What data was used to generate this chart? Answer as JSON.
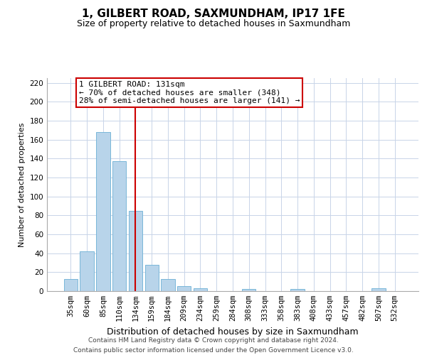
{
  "title": "1, GILBERT ROAD, SAXMUNDHAM, IP17 1FE",
  "subtitle": "Size of property relative to detached houses in Saxmundham",
  "xlabel": "Distribution of detached houses by size in Saxmundham",
  "ylabel": "Number of detached properties",
  "bar_labels": [
    "35sqm",
    "60sqm",
    "85sqm",
    "110sqm",
    "134sqm",
    "159sqm",
    "184sqm",
    "209sqm",
    "234sqm",
    "259sqm",
    "284sqm",
    "308sqm",
    "333sqm",
    "358sqm",
    "383sqm",
    "408sqm",
    "433sqm",
    "457sqm",
    "482sqm",
    "507sqm",
    "532sqm"
  ],
  "bar_values": [
    13,
    42,
    168,
    137,
    85,
    28,
    13,
    5,
    3,
    0,
    0,
    2,
    0,
    0,
    2,
    0,
    0,
    0,
    0,
    3,
    0
  ],
  "bar_color": "#b8d4ea",
  "bar_edge_color": "#6aafd4",
  "vline_x_index": 4,
  "vline_color": "#cc0000",
  "annotation_text": "1 GILBERT ROAD: 131sqm\n← 70% of detached houses are smaller (348)\n28% of semi-detached houses are larger (141) →",
  "ylim": [
    0,
    225
  ],
  "yticks": [
    0,
    20,
    40,
    60,
    80,
    100,
    120,
    140,
    160,
    180,
    200,
    220
  ],
  "footer_line1": "Contains HM Land Registry data © Crown copyright and database right 2024.",
  "footer_line2": "Contains public sector information licensed under the Open Government Licence v3.0.",
  "bg_color": "#ffffff",
  "grid_color": "#c8d4e8",
  "title_fontsize": 11,
  "subtitle_fontsize": 9,
  "ylabel_fontsize": 8,
  "xlabel_fontsize": 9,
  "annotation_fontsize": 8,
  "footer_fontsize": 6.5,
  "tick_fontsize": 7.5
}
